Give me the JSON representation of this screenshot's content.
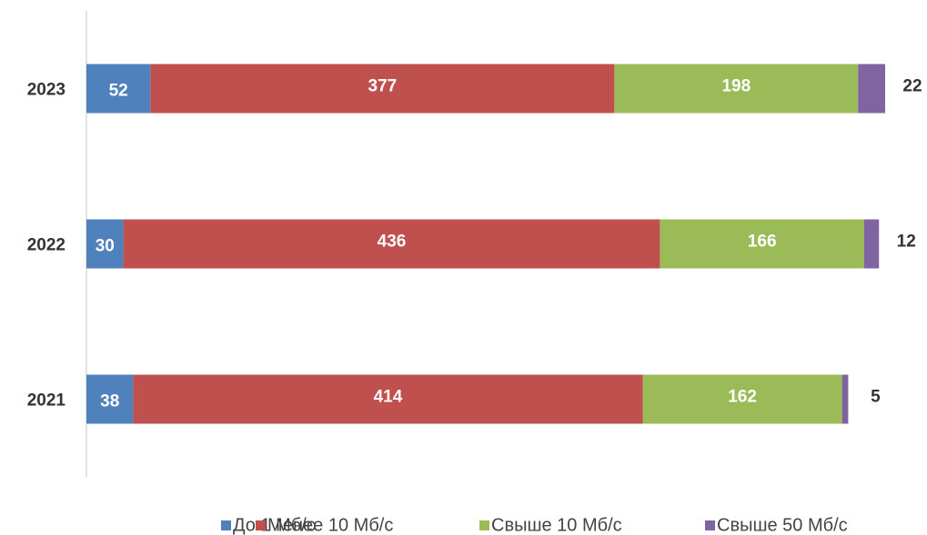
{
  "chart_data": {
    "type": "stacked-barh",
    "categories": [
      "2023",
      "2022",
      "2021"
    ],
    "series": [
      {
        "name": "До 1 Мб/с",
        "color": "#4f81bd",
        "values": [
          52,
          30,
          38
        ]
      },
      {
        "name": "Менее 10 Мб/с",
        "color": "#c0504d",
        "values": [
          377,
          436,
          414
        ]
      },
      {
        "name": "Свыше 10 Мб/с",
        "color": "#9bbb59",
        "values": [
          198,
          166,
          162
        ]
      },
      {
        "name": "Свыше 50 Мб/с",
        "color": "#8064a2",
        "values": [
          22,
          12,
          5
        ]
      }
    ],
    "legend": "bottom"
  }
}
